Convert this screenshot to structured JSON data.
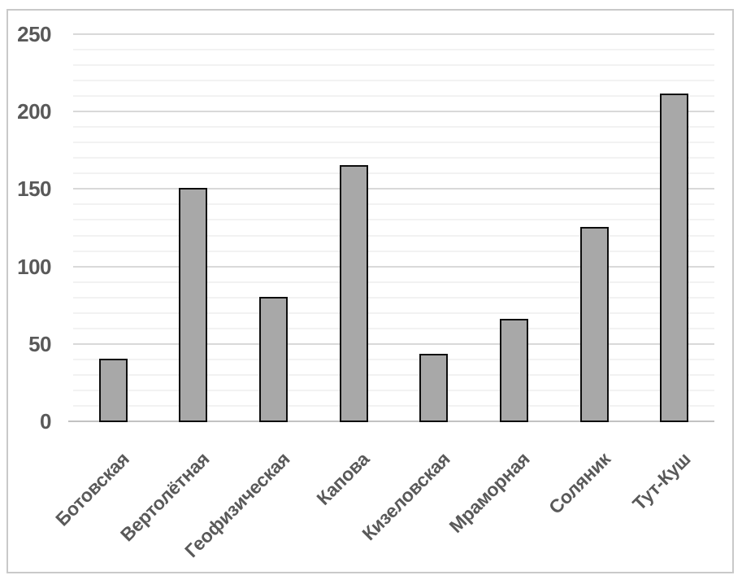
{
  "chart_data": {
    "type": "bar",
    "title": "",
    "xlabel": "",
    "ylabel": "",
    "categories": [
      "Ботовская",
      "Вертолётная",
      "Геофизическая",
      "Капова",
      "Кизеловская",
      "Мраморная",
      "Соляник",
      "Тут-Куш"
    ],
    "values": [
      40,
      150,
      80,
      165,
      43,
      66,
      125,
      211
    ],
    "ylim": [
      0,
      250
    ],
    "y_major_step": 50,
    "y_minor_step": 10,
    "y_tick_labels": [
      "0",
      "50",
      "100",
      "150",
      "200",
      "250"
    ],
    "x_tick_rotation_deg": -45,
    "grid": "horizontal major and minor gridlines, on",
    "legend": "none",
    "colors": {
      "bar_fill": "#a8a8a8",
      "bar_border": "#0d0d0d",
      "label_color": "#595959",
      "major_grid": "#d9d9d9",
      "minor_grid": "#f2f2f2",
      "axis_line": "#c2c2c2",
      "frame_border": "#c9c9c9",
      "background": "#ffffff"
    }
  }
}
